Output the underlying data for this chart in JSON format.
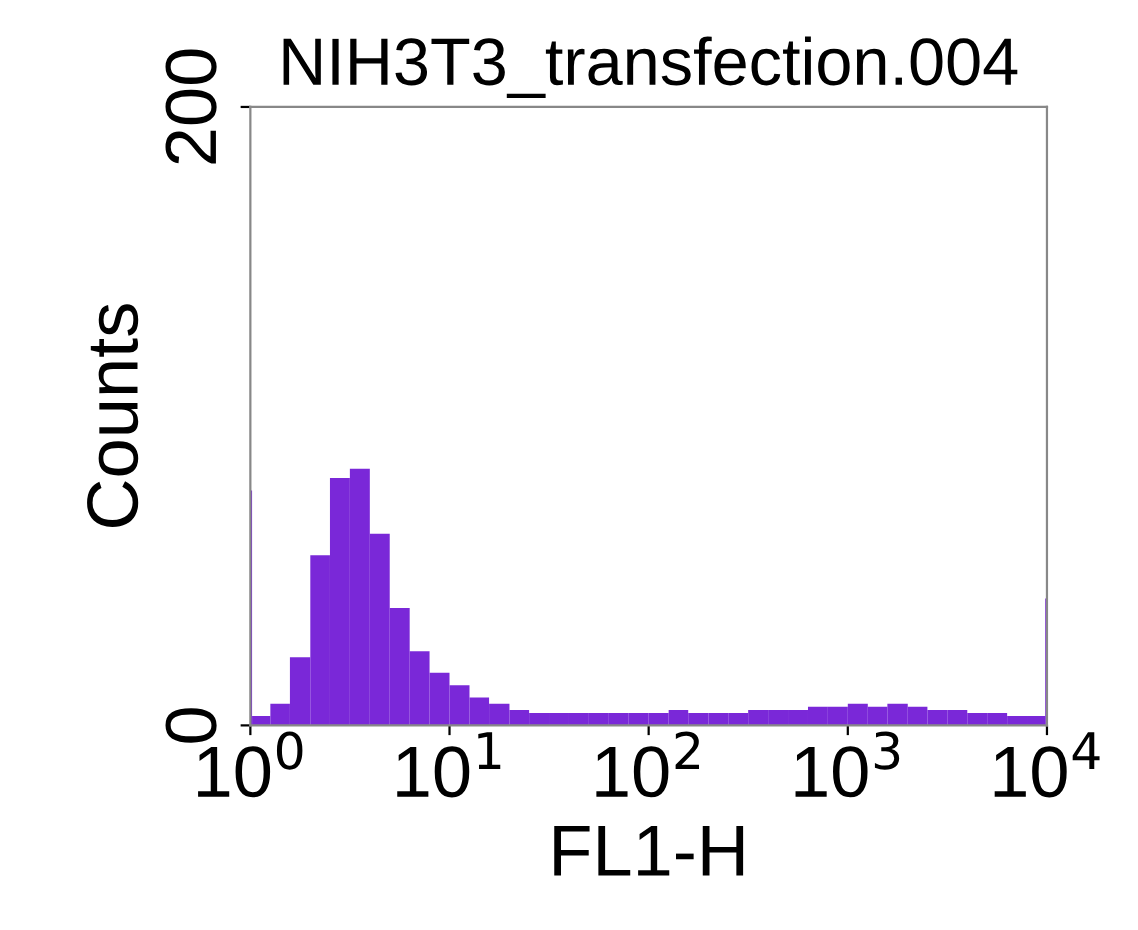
{
  "chart_data": {
    "type": "histogram",
    "title": "NIH3T3_transfection.004",
    "xlabel": "FL1-H",
    "ylabel": "Counts",
    "bins": [
      1,
      1.02,
      1.26,
      1.58,
      2.0,
      2.51,
      3.16,
      3.98,
      5.01,
      6.31,
      7.94,
      10,
      12.6,
      15.8,
      20.0,
      25.1,
      31.6,
      39.8,
      50.1,
      63.1,
      79.4,
      100,
      126,
      158,
      200,
      251,
      316,
      398,
      501,
      631,
      794,
      1000,
      1260,
      1580,
      2000,
      2510,
      3160,
      3980,
      5010,
      6310,
      7940,
      9800,
      10000
    ],
    "values": [
      76,
      3,
      7,
      22,
      55,
      80,
      83,
      62,
      38,
      24,
      17,
      13,
      9,
      7,
      5,
      4,
      4,
      4,
      4,
      4,
      4,
      4,
      5,
      4,
      4,
      4,
      5,
      5,
      5,
      6,
      6,
      7,
      6,
      7,
      6,
      5,
      5,
      4,
      4,
      3,
      3,
      41
    ],
    "color": "#7a28d8",
    "log": "x",
    "xlim": [
      1,
      10000
    ],
    "xticks": [
      {
        "value": 1,
        "label": "10$^{0}$"
      },
      {
        "value": 10,
        "label": "10$^{1}$"
      },
      {
        "value": 100,
        "label": "10$^{2}$"
      },
      {
        "value": 1000,
        "label": "10$^{3}$"
      },
      {
        "value": 10000,
        "label": "10$^{4}$"
      }
    ],
    "ylim": [
      0,
      200
    ],
    "yticks": [
      0,
      200
    ],
    "grid": false,
    "legend": false
  }
}
